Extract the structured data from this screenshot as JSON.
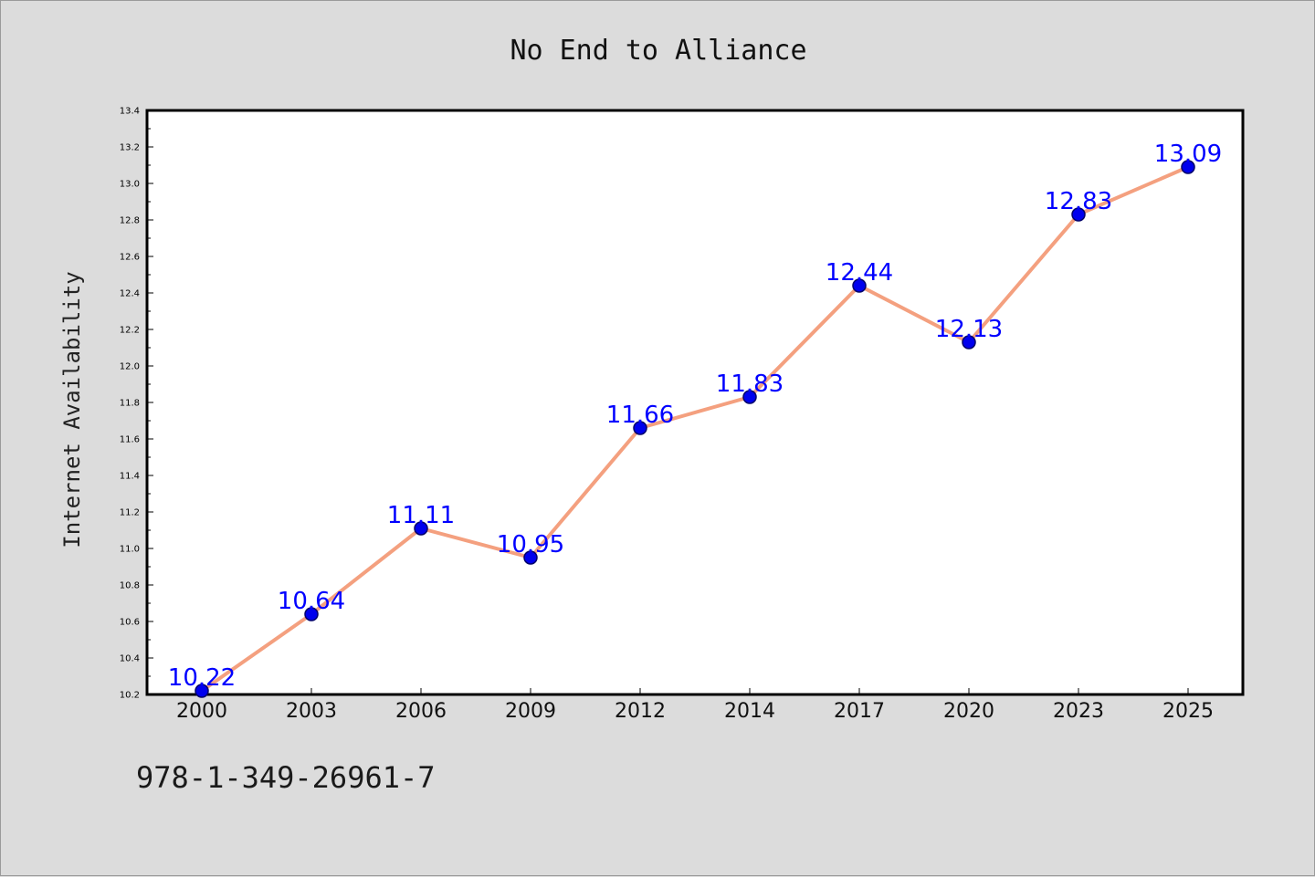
{
  "chart_data": {
    "type": "line",
    "title": "No End to Alliance",
    "ylabel": "Internet Availability",
    "xlabel": "",
    "categories": [
      "2000",
      "2003",
      "2006",
      "2009",
      "2012",
      "2014",
      "2017",
      "2020",
      "2023",
      "2025"
    ],
    "series": [
      {
        "values": [
          10.22,
          10.64,
          11.11,
          10.95,
          11.66,
          11.83,
          12.44,
          12.13,
          12.83,
          13.09
        ]
      }
    ],
    "data_labels": [
      "10.22",
      "10.64",
      "11.11",
      "10.95",
      "11.66",
      "11.83",
      "12.44",
      "12.13",
      "12.83",
      "13.09"
    ],
    "ylim": [
      10.2,
      13.4
    ],
    "yticks": [
      "10.2",
      "10.4",
      "10.6",
      "10.8",
      "11.0",
      "11.2",
      "11.4",
      "11.6",
      "11.8",
      "12.0",
      "12.2",
      "12.4",
      "12.6",
      "12.8",
      "13.0",
      "13.2",
      "13.4"
    ],
    "grid": false,
    "legend": "none",
    "colors": {
      "line": "#f4a07f",
      "marker": "#0000ee",
      "marker_edge": "#00006b",
      "data_label": "#0000ff",
      "plot_background": "#ffffff",
      "figure_background": "#dcdcdc"
    }
  },
  "footer": {
    "isbn": "978-1-349-26961-7"
  }
}
